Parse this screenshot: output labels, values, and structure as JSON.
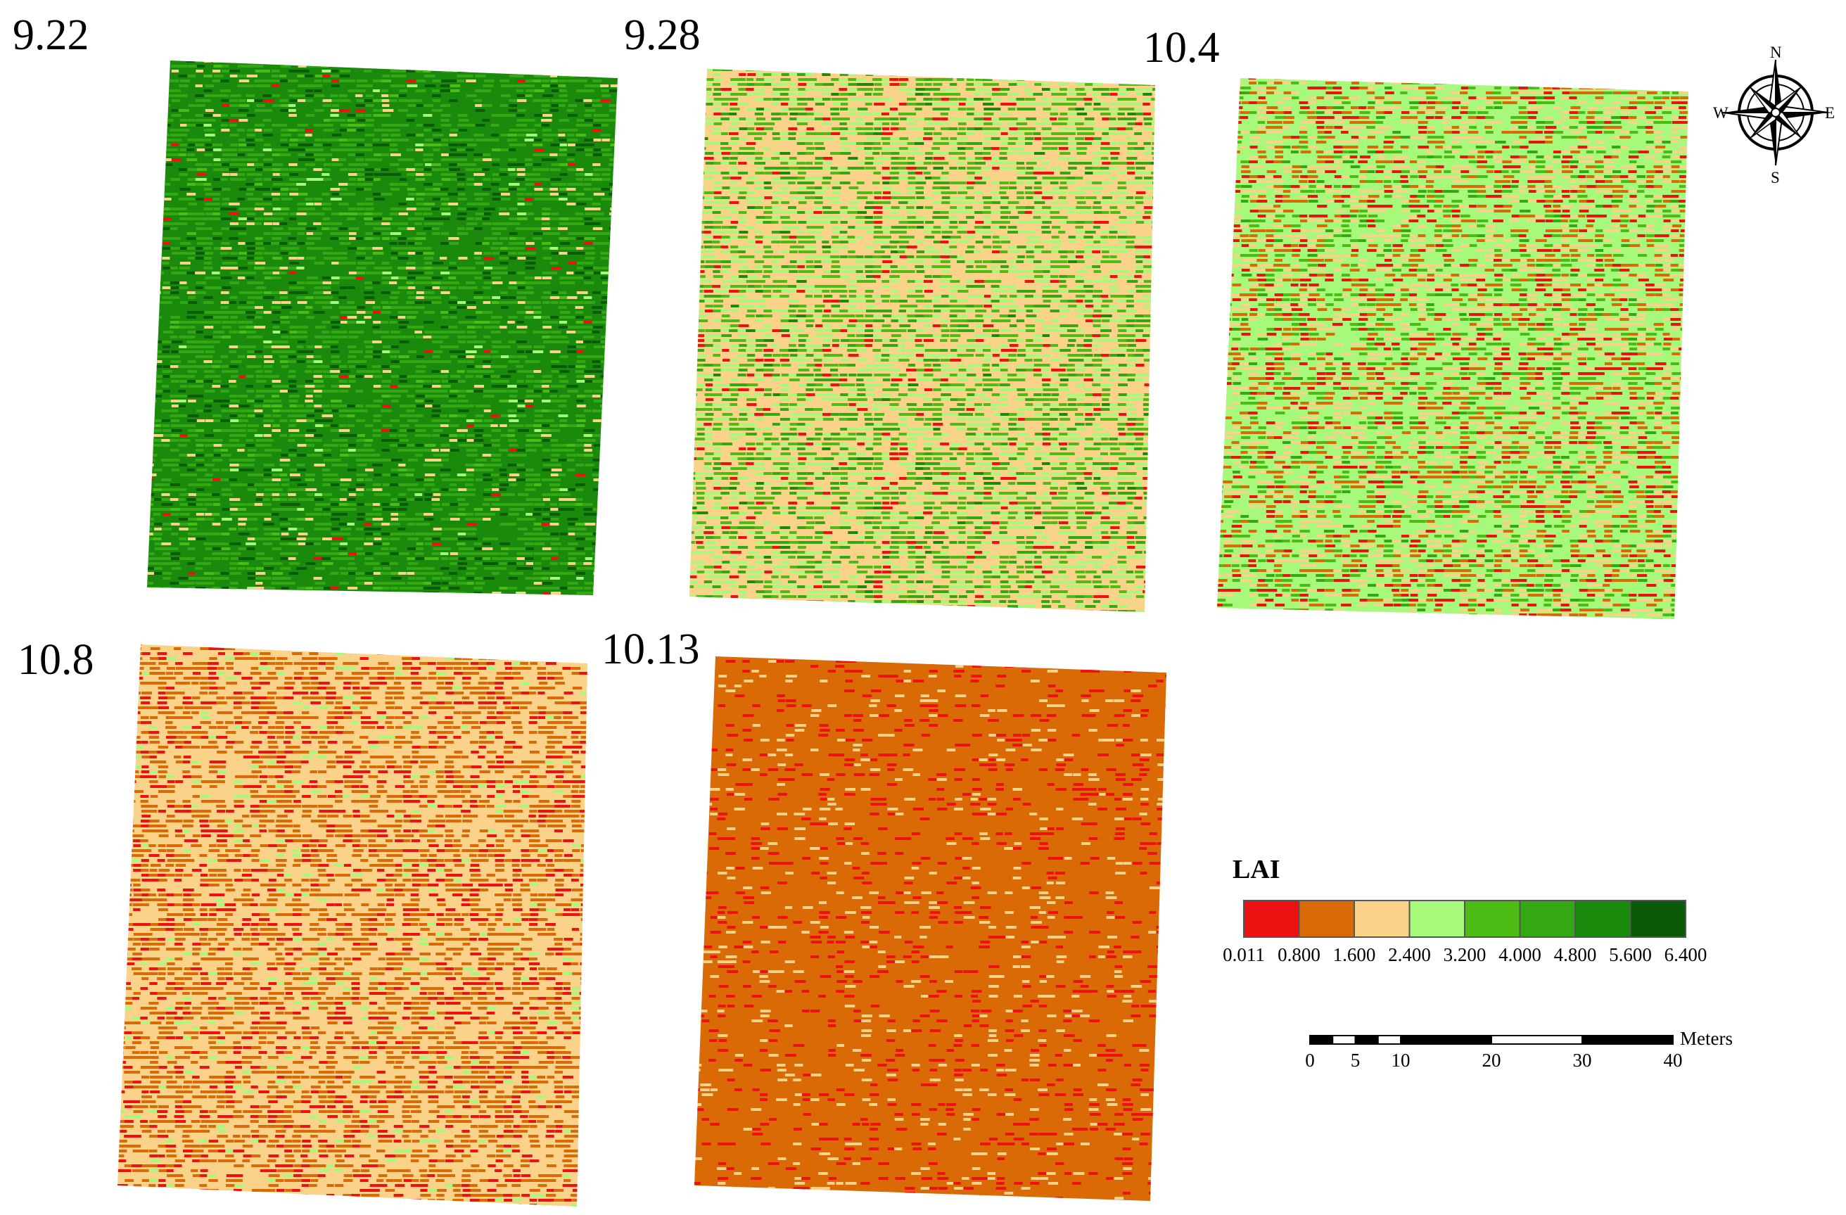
{
  "panels": [
    {
      "date": "9.22",
      "mix": [
        0.01,
        0.0,
        0.06,
        0.02,
        0.04,
        0.37,
        0.38,
        0.12
      ]
    },
    {
      "date": "9.28",
      "mix": [
        0.05,
        0.0,
        0.28,
        0.27,
        0.25,
        0.13,
        0.02,
        0.0
      ]
    },
    {
      "date": "10.4",
      "mix": [
        0.12,
        0.17,
        0.22,
        0.33,
        0.12,
        0.04,
        0.0,
        0.0
      ]
    },
    {
      "date": "10.8",
      "mix": [
        0.16,
        0.38,
        0.41,
        0.05,
        0.0,
        0.0,
        0.0,
        0.0
      ]
    },
    {
      "date": "10.13",
      "mix": [
        0.13,
        0.79,
        0.08,
        0.0,
        0.0,
        0.0,
        0.0,
        0.0
      ]
    }
  ],
  "compass": {
    "n": "N",
    "s": "S",
    "e": "E",
    "w": "W"
  },
  "legend": {
    "title": "LAI",
    "breaks": [
      "0.011",
      "0.800",
      "1.600",
      "2.400",
      "3.200",
      "4.000",
      "4.800",
      "5.600",
      "6.400"
    ],
    "colors": [
      "#ee1111",
      "#d96a06",
      "#fbd28a",
      "#a6f97a",
      "#4cbb14",
      "#33a812",
      "#1a8a0c",
      "#0a5a08"
    ]
  },
  "scalebar": {
    "unit": "Meters",
    "ticks": [
      "0",
      "5",
      "10",
      "20",
      "30",
      "40"
    ],
    "tick_values": [
      0,
      5,
      10,
      20,
      30,
      40
    ],
    "max": 40
  }
}
